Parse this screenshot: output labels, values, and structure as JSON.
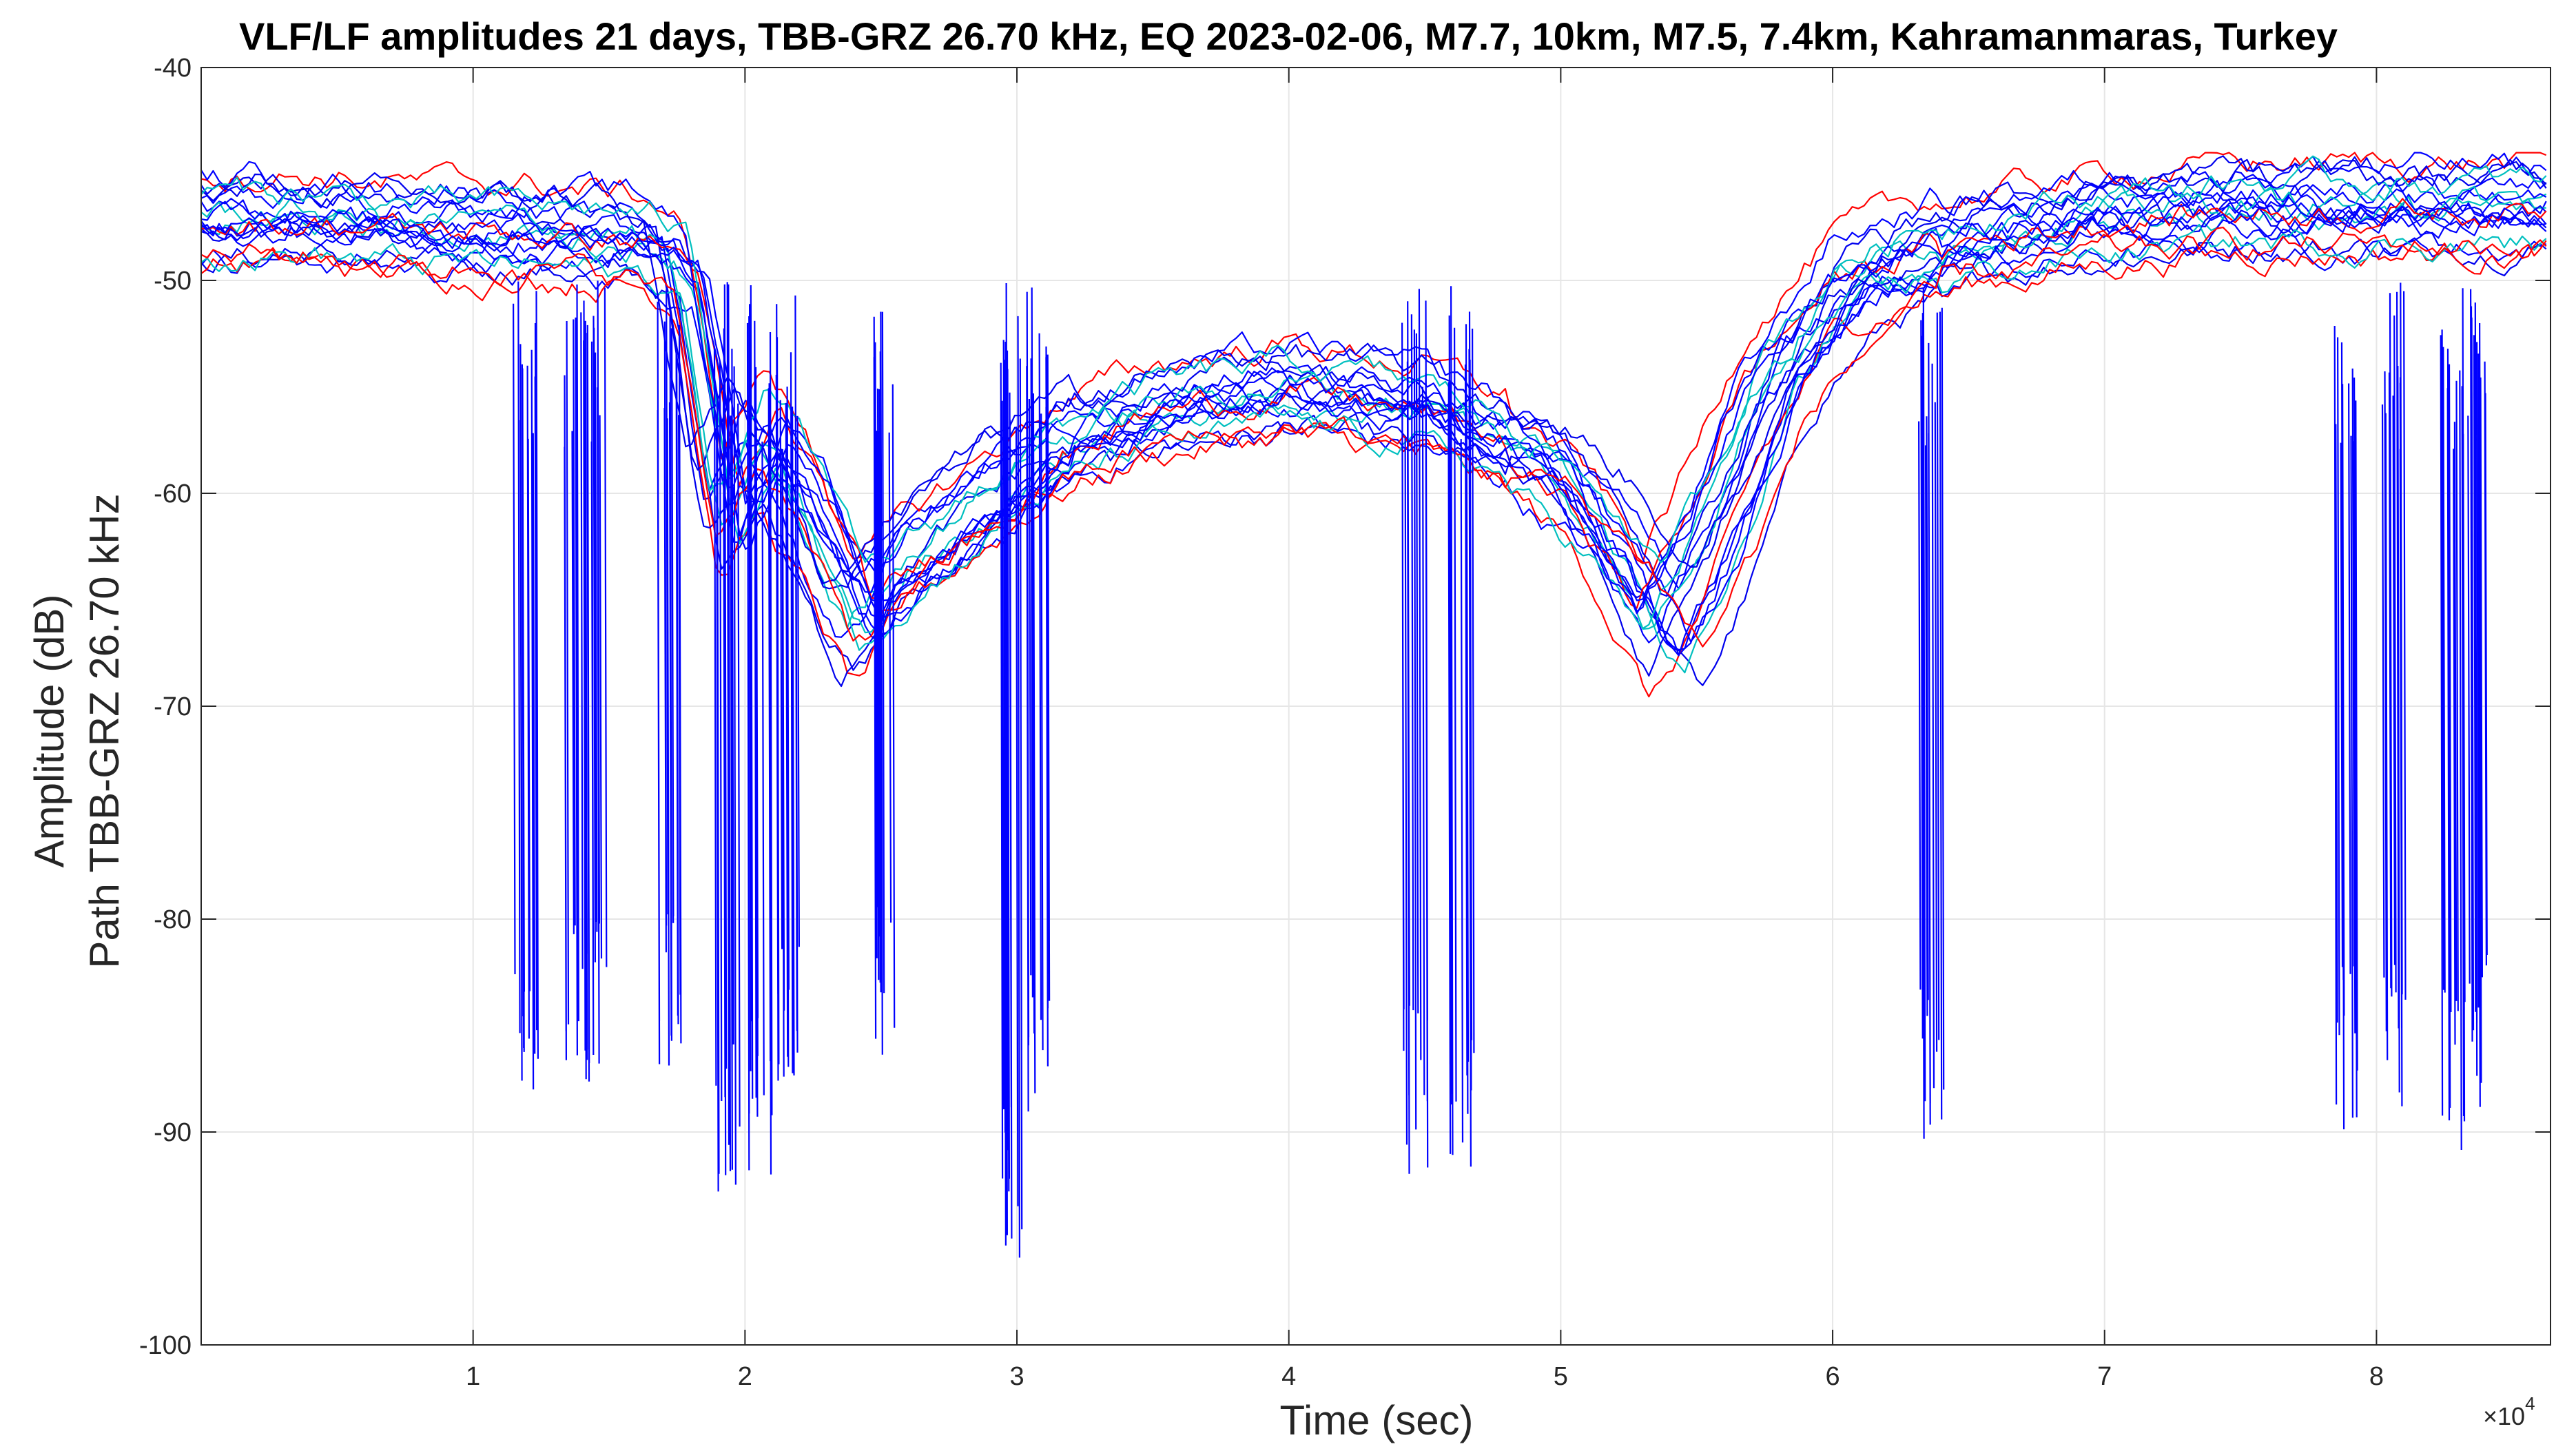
{
  "chart_data": {
    "type": "line",
    "title": "VLF/LF amplitudes 21 days, TBB-GRZ 26.70 kHz, EQ 2023-02-06, M7.7, 10km, M7.5, 7.4km, Kahramanmaras, Turkey",
    "xlabel": "Time (sec)",
    "ylabel_lines": [
      "Amplitude (dB)",
      "Path TBB-GRZ 26.70 kHz"
    ],
    "x_exponent_label": "×10",
    "x_exponent_power": "4",
    "xlim": [
      0,
      86400
    ],
    "ylim": [
      -100,
      -40
    ],
    "x_ticks": [
      10000,
      20000,
      30000,
      40000,
      50000,
      60000,
      70000,
      80000
    ],
    "x_tick_labels": [
      "1",
      "2",
      "3",
      "4",
      "5",
      "6",
      "7",
      "8"
    ],
    "y_ticks": [
      -100,
      -90,
      -80,
      -70,
      -60,
      -50,
      -40
    ],
    "y_tick_labels": [
      "-100",
      "-90",
      "-80",
      "-70",
      "-60",
      "-50",
      "-40"
    ],
    "grid": true,
    "series_count": 21,
    "series_colors": [
      "#0000ff",
      "#0000ee",
      "#0000ff",
      "#ff0000",
      "#00bfbf"
    ],
    "x": [
      0,
      4000,
      8000,
      12000,
      16000,
      17500,
      19000,
      20500,
      22000,
      24000,
      27000,
      31000,
      35000,
      40000,
      45000,
      49000,
      52000,
      54000,
      56000,
      58000,
      61000,
      65000,
      70000,
      75000,
      80000,
      86400
    ],
    "typical_series": [
      -47,
      -47,
      -47.5,
      -47.5,
      -48,
      -49,
      -60,
      -56,
      -59,
      -65,
      -62,
      -58,
      -56,
      -55,
      -56,
      -58,
      -61,
      -65,
      -60,
      -54,
      -50,
      -48,
      -47,
      -46.5,
      -46.5,
      -46.5
    ],
    "dropouts": [
      {
        "x": 11900,
        "min": -90
      },
      {
        "x": 13800,
        "min": -87
      },
      {
        "x": 14500,
        "min": -88
      },
      {
        "x": 17200,
        "min": -87
      },
      {
        "x": 19300,
        "min": -93
      },
      {
        "x": 20500,
        "min": -92
      },
      {
        "x": 21500,
        "min": -89
      },
      {
        "x": 25100,
        "min": -87
      },
      {
        "x": 29700,
        "min": -96
      },
      {
        "x": 30800,
        "min": -90
      },
      {
        "x": 44600,
        "min": -92
      },
      {
        "x": 46300,
        "min": -93
      },
      {
        "x": 63600,
        "min": -91
      },
      {
        "x": 78900,
        "min": -90
      },
      {
        "x": 80600,
        "min": -89
      },
      {
        "x": 82800,
        "min": -91
      },
      {
        "x": 83600,
        "min": -89
      }
    ]
  }
}
